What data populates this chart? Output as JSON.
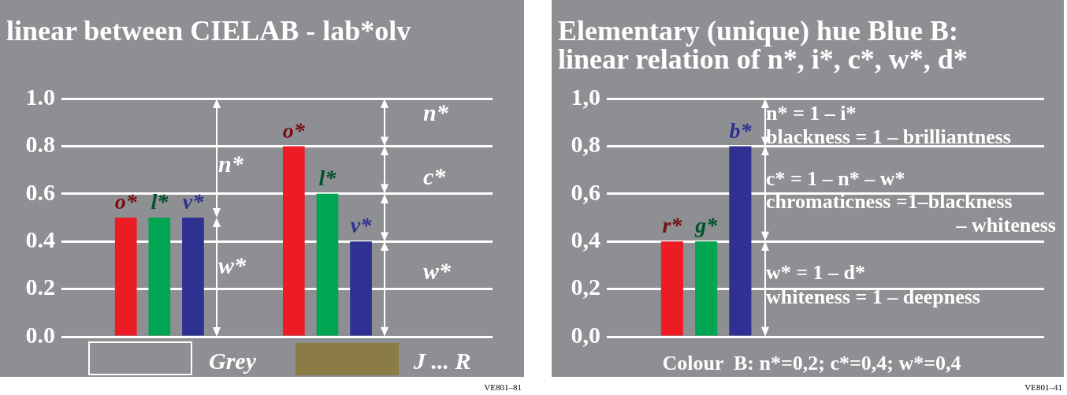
{
  "chart_data": [
    {
      "type": "bar",
      "title": "linear between CIELAB - lab*olv",
      "categories": [
        "o*",
        "l*",
        "v*",
        null,
        null,
        "o*",
        "l*",
        "v*"
      ],
      "values": [
        0.5,
        0.5,
        0.5,
        null,
        null,
        0.8,
        0.6,
        0.4
      ],
      "colors": [
        "#ed1c24",
        "#00a651",
        "#2e3192",
        "#8e8f93",
        "#8e8f93",
        "#ed1c24",
        "#00a651",
        "#2e3192"
      ],
      "ylim": [
        0,
        1
      ],
      "yticks": [
        {
          "value": 0,
          "label": "0.0"
        },
        0.2,
        0.4,
        0.6,
        0.8,
        {
          "value": 1,
          "label": "1.0"
        }
      ],
      "grid": "y",
      "annotations": [
        "n*",
        "w*",
        "n*",
        "c*",
        "w*",
        "Grey",
        "J ... R",
        "VE801–81"
      ]
    },
    {
      "type": "bar",
      "title": "Elementary (unique) hue Blue B:\nlinear relation of n*, i*, c*, w*, d*",
      "categories": [
        "r*",
        "g*",
        "b*"
      ],
      "values": [
        0.4,
        0.4,
        0.8
      ],
      "colors": [
        "#ed1c24",
        "#00a651",
        "#2e3192"
      ],
      "ylim": [
        0,
        1
      ],
      "yticks": [
        {
          "value": 0,
          "label": "0,0"
        },
        {
          "value": 0.2,
          "label": "0,2"
        },
        {
          "value": 0.4,
          "label": "0,4"
        },
        {
          "value": 0.6,
          "label": "0,6"
        },
        {
          "value": 0.8,
          "label": "0,8"
        },
        {
          "value": 1,
          "label": "1,0"
        }
      ],
      "grid": "y",
      "annotations": [
        "n* = 1 – i*",
        "blackness = 1 – brilliantness",
        "c* = 1 – n* – w*",
        "chromaticness =1–blackness",
        "– whiteness",
        "w* = 1 – d*",
        "whiteness = 1 – deepness",
        "Colour  B: n*=0,2; c*=0,4; w*=0,4",
        "VE801–41"
      ]
    }
  ]
}
